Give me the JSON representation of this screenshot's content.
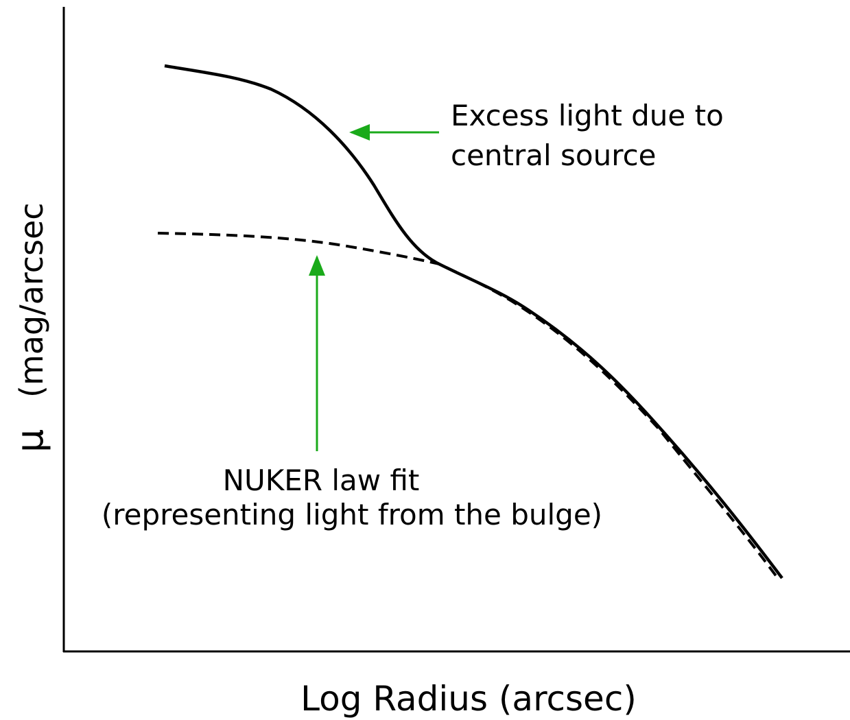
{
  "annotations": {
    "excess": {
      "line1": "Excess light due to",
      "line2": "central source"
    },
    "nuker": {
      "line1": "NUKER law fit",
      "line2": "(representing light from the bulge)"
    }
  },
  "axes": {
    "x_label": "Log Radius  (arcsec)",
    "y_symbol": "μ",
    "y_label": "(mag/arcsec"
  }
}
